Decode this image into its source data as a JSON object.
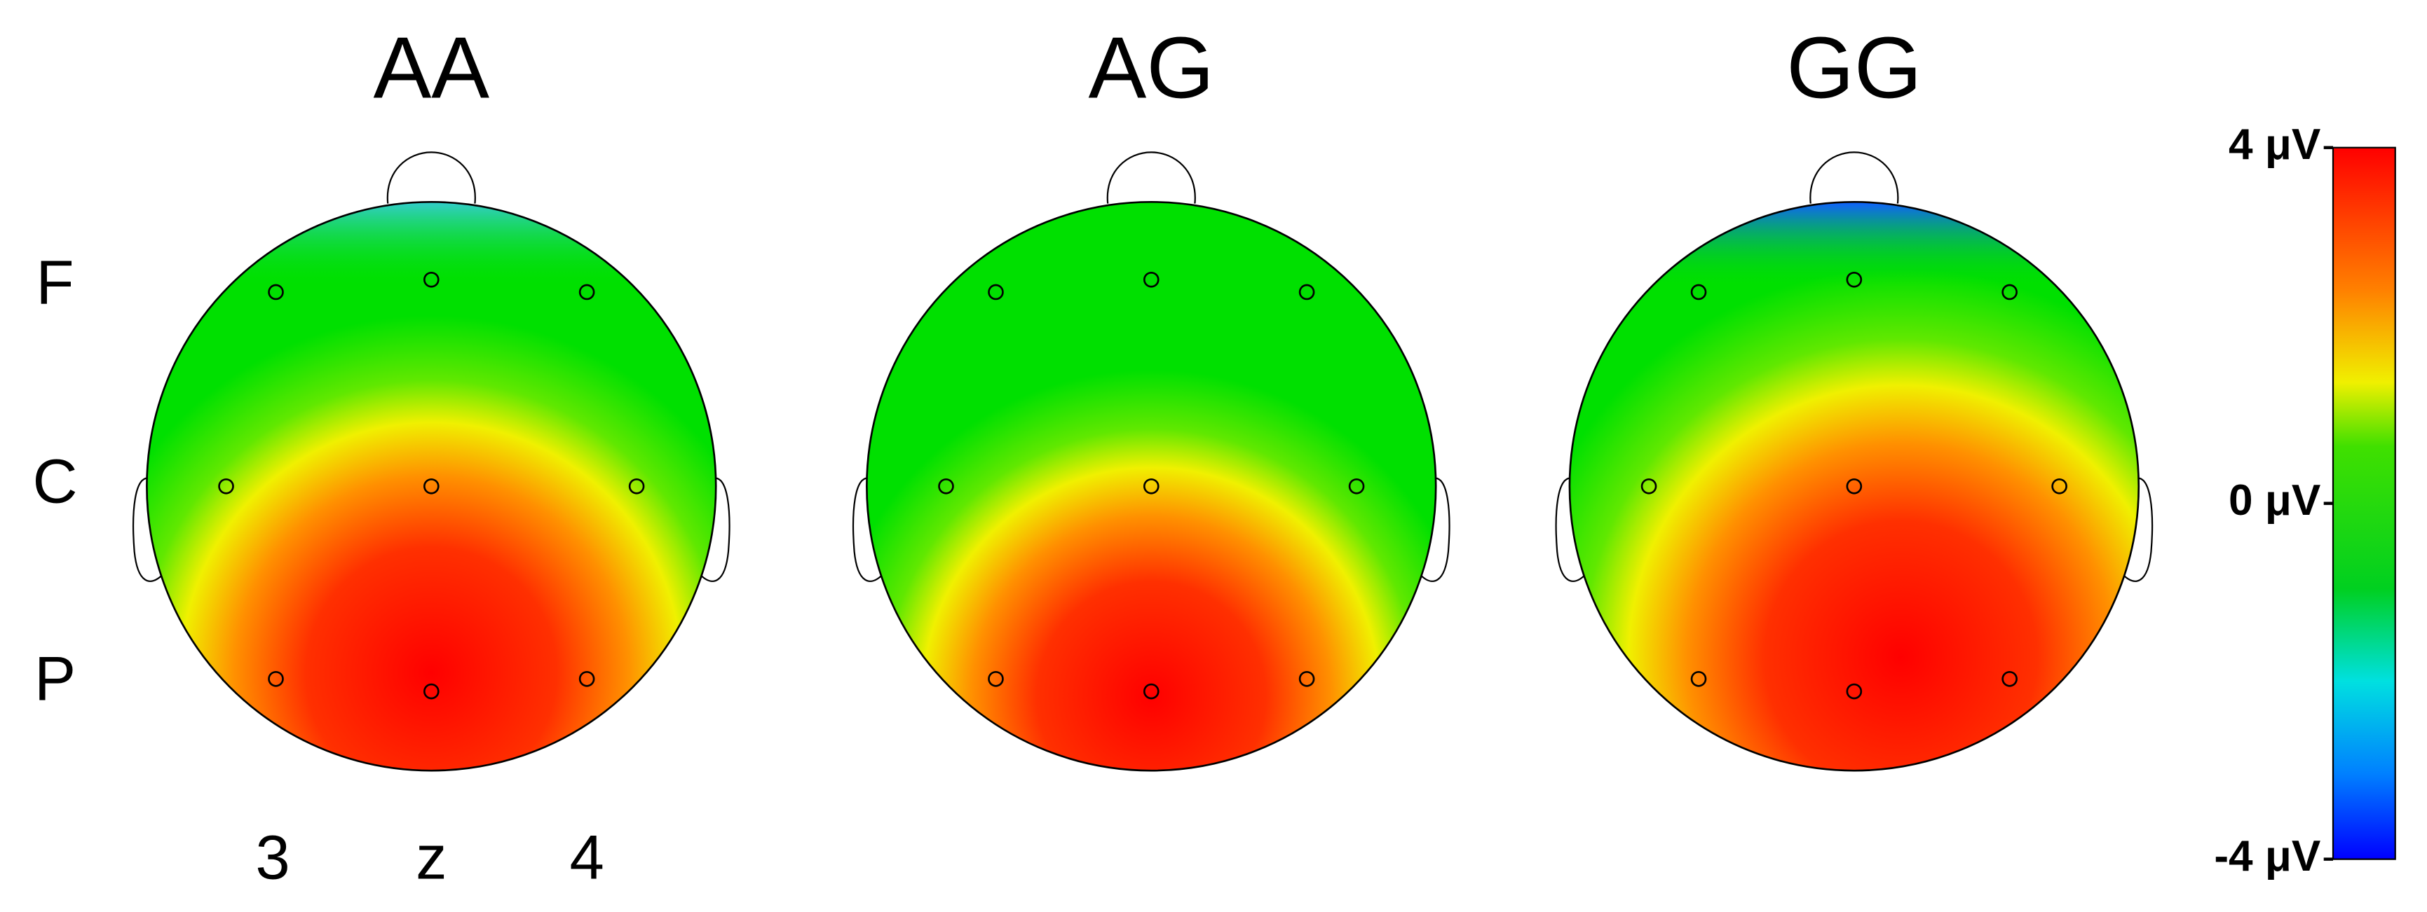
{
  "panels": [
    {
      "title": "AA"
    },
    {
      "title": "AG"
    },
    {
      "title": "GG"
    }
  ],
  "row_labels": [
    "F",
    "C",
    "P"
  ],
  "column_labels": [
    "3",
    "z",
    "4"
  ],
  "colorbar": {
    "lim": [
      -4,
      4
    ],
    "ticks": [
      {
        "value": 4,
        "label": "4 μV"
      },
      {
        "value": 0,
        "label": "0 μV"
      },
      {
        "value": -4,
        "label": "-4 μV"
      }
    ]
  }
}
